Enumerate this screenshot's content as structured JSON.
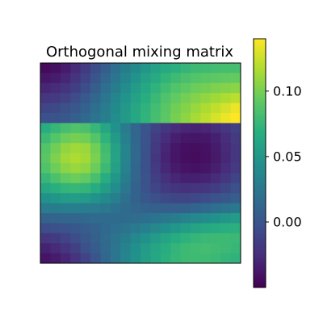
{
  "chart_data": {
    "type": "heatmap",
    "title": "Orthogonal mixing matrix",
    "xlabel": "",
    "ylabel": "",
    "rows": 20,
    "cols": 20,
    "colormap": "viridis",
    "color_range": [
      -0.05,
      0.14
    ],
    "colorbar": {
      "ticks": [
        0.0,
        0.05,
        0.1
      ],
      "tick_labels": [
        "0.00",
        "0.05",
        "0.10"
      ]
    },
    "grid": false,
    "values": [
      [
        -0.045,
        -0.042,
        -0.036,
        -0.028,
        -0.018,
        -0.006,
        0.006,
        0.018,
        0.03,
        0.04,
        0.05,
        0.058,
        0.065,
        0.07,
        0.075,
        0.078,
        0.08,
        0.081,
        0.082,
        0.082
      ],
      [
        -0.038,
        -0.035,
        -0.03,
        -0.022,
        -0.012,
        0.0,
        0.012,
        0.024,
        0.036,
        0.047,
        0.057,
        0.065,
        0.073,
        0.079,
        0.084,
        0.087,
        0.09,
        0.092,
        0.093,
        0.094
      ],
      [
        -0.03,
        -0.027,
        -0.022,
        -0.015,
        -0.005,
        0.006,
        0.018,
        0.03,
        0.042,
        0.053,
        0.063,
        0.072,
        0.08,
        0.087,
        0.092,
        0.096,
        0.099,
        0.102,
        0.104,
        0.106
      ],
      [
        -0.02,
        -0.018,
        -0.013,
        -0.006,
        0.003,
        0.013,
        0.024,
        0.036,
        0.047,
        0.058,
        0.068,
        0.077,
        0.086,
        0.093,
        0.099,
        0.104,
        0.108,
        0.112,
        0.116,
        0.12
      ],
      [
        -0.01,
        -0.008,
        -0.004,
        0.002,
        0.01,
        0.019,
        0.029,
        0.04,
        0.051,
        0.062,
        0.072,
        0.081,
        0.09,
        0.098,
        0.104,
        0.11,
        0.116,
        0.122,
        0.128,
        0.135
      ],
      [
        -0.003,
        -0.001,
        0.002,
        0.007,
        0.014,
        0.022,
        0.031,
        0.041,
        0.052,
        0.063,
        0.073,
        0.082,
        0.091,
        0.1,
        0.107,
        0.114,
        0.121,
        0.128,
        0.135,
        0.14
      ],
      [
        0.068,
        0.076,
        0.082,
        0.086,
        0.084,
        0.076,
        0.062,
        0.046,
        0.028,
        0.012,
        0.0,
        -0.012,
        -0.02,
        -0.026,
        -0.03,
        -0.031,
        -0.03,
        -0.026,
        -0.02,
        -0.014
      ],
      [
        0.078,
        0.088,
        0.096,
        0.1,
        0.098,
        0.088,
        0.072,
        0.052,
        0.032,
        0.013,
        -0.002,
        -0.016,
        -0.026,
        -0.034,
        -0.038,
        -0.039,
        -0.038,
        -0.033,
        -0.026,
        -0.018
      ],
      [
        0.087,
        0.098,
        0.108,
        0.112,
        0.11,
        0.098,
        0.08,
        0.058,
        0.035,
        0.014,
        -0.002,
        -0.018,
        -0.03,
        -0.038,
        -0.042,
        -0.043,
        -0.041,
        -0.036,
        -0.028,
        -0.02
      ],
      [
        0.09,
        0.102,
        0.112,
        0.116,
        0.113,
        0.101,
        0.082,
        0.06,
        0.036,
        0.014,
        -0.003,
        -0.019,
        -0.031,
        -0.039,
        -0.043,
        -0.044,
        -0.042,
        -0.037,
        -0.029,
        -0.02
      ],
      [
        0.086,
        0.097,
        0.106,
        0.11,
        0.107,
        0.096,
        0.078,
        0.057,
        0.034,
        0.013,
        -0.003,
        -0.018,
        -0.029,
        -0.036,
        -0.04,
        -0.041,
        -0.039,
        -0.034,
        -0.026,
        -0.018
      ],
      [
        0.076,
        0.085,
        0.093,
        0.096,
        0.093,
        0.083,
        0.068,
        0.05,
        0.03,
        0.012,
        -0.002,
        -0.015,
        -0.024,
        -0.03,
        -0.033,
        -0.033,
        -0.031,
        -0.027,
        -0.02,
        -0.012
      ],
      [
        0.062,
        0.069,
        0.074,
        0.076,
        0.074,
        0.066,
        0.055,
        0.041,
        0.025,
        0.01,
        -0.001,
        -0.011,
        -0.017,
        -0.021,
        -0.023,
        -0.022,
        -0.02,
        -0.016,
        -0.01,
        -0.004
      ],
      [
        0.046,
        0.05,
        0.053,
        0.054,
        0.052,
        0.047,
        0.04,
        0.031,
        0.02,
        0.01,
        0.002,
        -0.004,
        -0.008,
        -0.01,
        -0.01,
        -0.009,
        -0.006,
        -0.002,
        0.002,
        0.006
      ],
      [
        0.028,
        0.03,
        0.031,
        0.031,
        0.03,
        0.028,
        0.025,
        0.021,
        0.016,
        0.012,
        0.01,
        0.008,
        0.007,
        0.007,
        0.009,
        0.011,
        0.014,
        0.018,
        0.022,
        0.026
      ],
      [
        0.01,
        0.011,
        0.012,
        0.013,
        0.014,
        0.015,
        0.016,
        0.016,
        0.016,
        0.017,
        0.019,
        0.022,
        0.026,
        0.03,
        0.034,
        0.038,
        0.042,
        0.046,
        0.05,
        0.053
      ],
      [
        -0.006,
        -0.004,
        -0.001,
        0.002,
        0.006,
        0.01,
        0.014,
        0.018,
        0.022,
        0.027,
        0.032,
        0.038,
        0.044,
        0.05,
        0.055,
        0.06,
        0.064,
        0.067,
        0.069,
        0.07
      ],
      [
        -0.02,
        -0.017,
        -0.012,
        -0.006,
        0.001,
        0.008,
        0.015,
        0.022,
        0.03,
        0.038,
        0.046,
        0.053,
        0.06,
        0.066,
        0.071,
        0.075,
        0.077,
        0.078,
        0.078,
        0.077
      ],
      [
        -0.032,
        -0.028,
        -0.022,
        -0.014,
        -0.004,
        0.005,
        0.014,
        0.024,
        0.034,
        0.044,
        0.053,
        0.061,
        0.068,
        0.074,
        0.078,
        0.08,
        0.081,
        0.08,
        0.078,
        0.076
      ],
      [
        -0.04,
        -0.036,
        -0.03,
        -0.022,
        -0.012,
        0.0,
        0.012,
        0.024,
        0.035,
        0.046,
        0.055,
        0.063,
        0.07,
        0.075,
        0.078,
        0.079,
        0.079,
        0.077,
        0.074,
        0.072
      ]
    ]
  }
}
